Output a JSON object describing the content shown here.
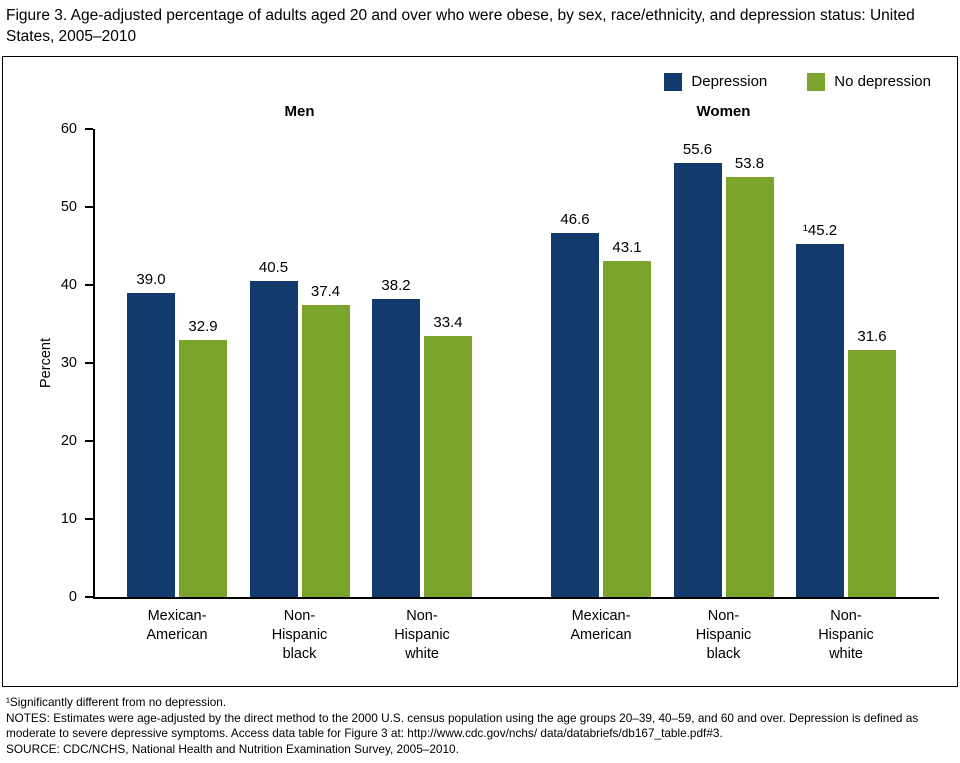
{
  "figure": {
    "title": "Figure 3. Age-adjusted percentage of adults aged 20 and over who were obese, by sex, race/ethnicity, and depression status: United States, 2005–2010"
  },
  "chart_data": {
    "type": "bar",
    "title": "Age-adjusted percentage of adults aged 20 and over who were obese, by sex, race/ethnicity, and depression status: United States, 2005–2010",
    "ylabel": "Percent",
    "ylim": [
      0,
      60
    ],
    "yticks": [
      0,
      10,
      20,
      30,
      40,
      50,
      60
    ],
    "grid": false,
    "legend_position": "top-right",
    "legend": [
      {
        "name": "Depression",
        "color": "#123a6d"
      },
      {
        "name": "No depression",
        "color": "#7aa42c"
      }
    ],
    "groups": [
      {
        "label": "Men",
        "categories": [
          {
            "label": "Mexican-\nAmerican",
            "values": [
              39.0,
              32.9
            ],
            "value_labels": [
              "39.0",
              "32.9"
            ]
          },
          {
            "label": "Non-\nHispanic\nblack",
            "values": [
              40.5,
              37.4
            ],
            "value_labels": [
              "40.5",
              "37.4"
            ]
          },
          {
            "label": "Non-\nHispanic\nwhite",
            "values": [
              38.2,
              33.4
            ],
            "value_labels": [
              "38.2",
              "33.4"
            ]
          }
        ]
      },
      {
        "label": "Women",
        "categories": [
          {
            "label": "Mexican-\nAmerican",
            "values": [
              46.6,
              43.1
            ],
            "value_labels": [
              "46.6",
              "43.1"
            ]
          },
          {
            "label": "Non-\nHispanic\nblack",
            "values": [
              55.6,
              53.8
            ],
            "value_labels": [
              "55.6",
              "53.8"
            ]
          },
          {
            "label": "Non-\nHispanic\nwhite",
            "values": [
              45.2,
              31.6
            ],
            "value_labels": [
              "¹45.2",
              "31.6"
            ]
          }
        ]
      }
    ]
  },
  "footnotes": {
    "significance": "¹Significantly different from no depression.",
    "notes": "NOTES: Estimates were age-adjusted by the direct method to the 2000 U.S. census population using the age groups 20–39, 40–59, and 60 and over. Depression is defined as moderate to severe depressive symptoms. Access data table for Figure 3 at: http://www.cdc.gov/nchs/ data/databriefs/db167_table.pdf#3.",
    "source": "SOURCE: CDC/NCHS, National Health and Nutrition Examination Survey, 2005–2010."
  }
}
